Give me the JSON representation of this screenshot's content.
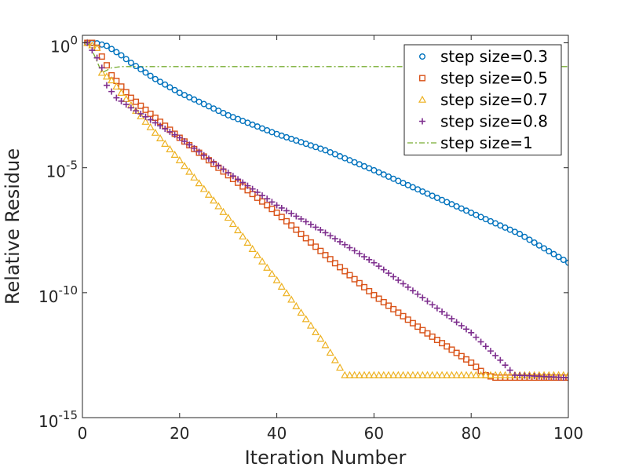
{
  "chart_data": {
    "type": "line",
    "xlabel": "Iteration Number",
    "ylabel": "Relative Residue",
    "title": "",
    "xlim": [
      0,
      100
    ],
    "ylim_log10": [
      -15,
      0.3
    ],
    "yscale": "log",
    "grid": false,
    "legend_position": "top-right",
    "x_ticks": [
      0,
      20,
      40,
      60,
      80,
      100
    ],
    "y_ticks": [
      {
        "exp": 0,
        "base": "10",
        "sup": "0"
      },
      {
        "exp": -5,
        "base": "10",
        "sup": "-5"
      },
      {
        "exp": -10,
        "base": "10",
        "sup": "-10"
      },
      {
        "exp": -15,
        "base": "10",
        "sup": "-15"
      }
    ],
    "series": [
      {
        "name": "step size=0.3",
        "color": "#0072BD",
        "marker": "circle",
        "x_start": 1,
        "x_end": 100,
        "log10_knots": [
          [
            1,
            0
          ],
          [
            3,
            -0.02
          ],
          [
            5,
            -0.12
          ],
          [
            8,
            -0.5
          ],
          [
            10,
            -0.8
          ],
          [
            15,
            -1.45
          ],
          [
            20,
            -2.0
          ],
          [
            30,
            -2.9
          ],
          [
            40,
            -3.65
          ],
          [
            50,
            -4.3
          ],
          [
            60,
            -5.1
          ],
          [
            70,
            -5.95
          ],
          [
            80,
            -6.8
          ],
          [
            90,
            -7.65
          ],
          [
            100,
            -8.8
          ]
        ]
      },
      {
        "name": "step size=0.5",
        "color": "#D95319",
        "marker": "square",
        "x_start": 1,
        "x_end": 100,
        "log10_knots": [
          [
            1,
            0
          ],
          [
            2,
            0
          ],
          [
            3,
            -0.2
          ],
          [
            5,
            -0.9
          ],
          [
            6,
            -1.3
          ],
          [
            10,
            -2.2
          ],
          [
            20,
            -3.8
          ],
          [
            30,
            -5.3
          ],
          [
            40,
            -6.8
          ],
          [
            50,
            -8.5
          ],
          [
            60,
            -10.1
          ],
          [
            70,
            -11.5
          ],
          [
            80,
            -12.8
          ],
          [
            83,
            -13.3
          ],
          [
            85,
            -13.4
          ],
          [
            100,
            -13.4
          ]
        ]
      },
      {
        "name": "step size=0.7",
        "color": "#EDB120",
        "marker": "triangle",
        "x_start": 1,
        "x_end": 100,
        "log10_knots": [
          [
            1,
            0
          ],
          [
            3,
            -0.2
          ],
          [
            4,
            -1.2
          ],
          [
            6,
            -1.5
          ],
          [
            10,
            -2.5
          ],
          [
            20,
            -4.7
          ],
          [
            30,
            -7.0
          ],
          [
            40,
            -9.5
          ],
          [
            50,
            -12.1
          ],
          [
            53,
            -13.0
          ],
          [
            54,
            -13.3
          ],
          [
            100,
            -13.3
          ]
        ]
      },
      {
        "name": "step size=0.8",
        "color": "#7E2F8E",
        "marker": "plus",
        "x_start": 1,
        "x_end": 100,
        "log10_knots": [
          [
            1,
            0
          ],
          [
            2,
            -0.3
          ],
          [
            3,
            -0.6
          ],
          [
            4,
            -1.0
          ],
          [
            5,
            -1.7
          ],
          [
            7,
            -2.2
          ],
          [
            10,
            -2.6
          ],
          [
            20,
            -3.8
          ],
          [
            30,
            -5.2
          ],
          [
            40,
            -6.5
          ],
          [
            50,
            -7.6
          ],
          [
            60,
            -8.8
          ],
          [
            70,
            -10.2
          ],
          [
            80,
            -11.6
          ],
          [
            86,
            -12.7
          ],
          [
            89,
            -13.3
          ],
          [
            100,
            -13.4
          ]
        ]
      },
      {
        "name": "step size=1",
        "color": "#77AC30",
        "marker": "dashdot",
        "x_start": 1,
        "x_end": 100,
        "log10_knots": [
          [
            1,
            0
          ],
          [
            2,
            -0.3
          ],
          [
            4,
            -1.2
          ],
          [
            6,
            -1.0
          ],
          [
            8,
            -0.95
          ],
          [
            100,
            -0.95
          ]
        ]
      }
    ]
  }
}
